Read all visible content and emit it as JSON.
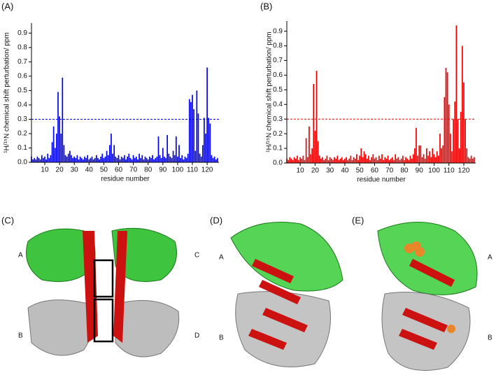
{
  "chart_data": [
    {
      "type": "bar",
      "panel_label": "(A)",
      "xlabel": "residue number",
      "ylabel": "¹H/¹⁵N chemical shift perturbation/ ppm",
      "color": "#0000ee",
      "threshold": 0.3,
      "threshold_color": "#0000ee",
      "xlim": [
        1,
        128
      ],
      "ylim": [
        0,
        0.97
      ],
      "xticks": [
        10,
        20,
        30,
        40,
        50,
        60,
        70,
        80,
        90,
        100,
        110,
        120
      ],
      "yticks": [
        {
          "value": 0,
          "label": "0.0"
        },
        0.1,
        0.2,
        0.3,
        0.4,
        0.5,
        0.6,
        0.7,
        0.8,
        0.9
      ],
      "x": [
        1,
        2,
        3,
        4,
        5,
        6,
        7,
        8,
        9,
        10,
        11,
        12,
        13,
        14,
        15,
        16,
        17,
        18,
        19,
        20,
        21,
        22,
        23,
        24,
        25,
        26,
        27,
        28,
        29,
        30,
        31,
        32,
        33,
        34,
        35,
        36,
        37,
        38,
        39,
        40,
        41,
        42,
        43,
        44,
        45,
        46,
        47,
        48,
        49,
        50,
        51,
        52,
        53,
        54,
        55,
        56,
        57,
        58,
        59,
        60,
        61,
        62,
        63,
        64,
        65,
        66,
        67,
        68,
        69,
        70,
        71,
        72,
        73,
        74,
        75,
        76,
        77,
        78,
        79,
        80,
        81,
        82,
        83,
        84,
        85,
        86,
        87,
        88,
        89,
        90,
        91,
        92,
        93,
        94,
        95,
        96,
        97,
        98,
        99,
        100,
        101,
        102,
        103,
        104,
        105,
        106,
        107,
        108,
        109,
        110,
        111,
        112,
        113,
        114,
        115,
        116,
        117,
        118,
        119,
        120,
        121,
        122,
        123,
        124,
        125,
        126,
        127
      ],
      "values": [
        0.04,
        0.02,
        0.03,
        0.02,
        0.04,
        0.03,
        0.02,
        0.05,
        0.03,
        0.04,
        0.02,
        0.06,
        0.03,
        0.05,
        0.14,
        0.25,
        0.1,
        0.2,
        0.49,
        0.32,
        0.2,
        0.59,
        0.12,
        0.05,
        0.04,
        0.06,
        0.08,
        0.05,
        0.03,
        0.04,
        0.03,
        0.05,
        0.02,
        0.04,
        0.03,
        0.02,
        0.04,
        0.03,
        0.05,
        0.02,
        0.03,
        0.04,
        0.02,
        0.03,
        0.05,
        0.03,
        0.02,
        0.04,
        0.06,
        0.03,
        0.04,
        0.08,
        0.05,
        0.12,
        0.2,
        0.06,
        0.12,
        0.04,
        0.03,
        0.05,
        0.02,
        0.04,
        0.03,
        0.05,
        0.02,
        0.04,
        0.06,
        0.03,
        0.02,
        0.05,
        0.03,
        0.04,
        0.02,
        0.06,
        0.03,
        0.05,
        0.02,
        0.04,
        0.03,
        0.02,
        0.04,
        0.03,
        0.05,
        0.02,
        0.03,
        0.04,
        0.18,
        0.05,
        0.03,
        0.1,
        0.04,
        0.03,
        0.19,
        0.06,
        0.04,
        0.03,
        0.08,
        0.05,
        0.18,
        0.04,
        0.12,
        0.03,
        0.05,
        0.02,
        0.04,
        0.03,
        0.06,
        0.44,
        0.42,
        0.47,
        0.37,
        0.08,
        0.5,
        0.34,
        0.06,
        0.04,
        0.12,
        0.31,
        0.2,
        0.66,
        0.31,
        0.27,
        0.05,
        0.03,
        0.04,
        0.02,
        0.03
      ]
    },
    {
      "type": "bar",
      "panel_label": "(B)",
      "xlabel": "residue number",
      "ylabel": "¹H/¹⁵N chemical shift perturbation/ ppm",
      "color": "#ee0000",
      "threshold": 0.3,
      "threshold_color": "#ee0000",
      "xlim": [
        1,
        128
      ],
      "ylim": [
        0,
        0.97
      ],
      "xticks": [
        10,
        20,
        30,
        40,
        50,
        60,
        70,
        80,
        90,
        100,
        110,
        120
      ],
      "yticks": [
        {
          "value": 0,
          "label": "0.0"
        },
        0.1,
        0.2,
        0.3,
        0.4,
        0.5,
        0.6,
        0.7,
        0.8,
        0.9
      ],
      "x": [
        1,
        2,
        3,
        4,
        5,
        6,
        7,
        8,
        9,
        10,
        11,
        12,
        13,
        14,
        15,
        16,
        17,
        18,
        19,
        20,
        21,
        22,
        23,
        24,
        25,
        26,
        27,
        28,
        29,
        30,
        31,
        32,
        33,
        34,
        35,
        36,
        37,
        38,
        39,
        40,
        41,
        42,
        43,
        44,
        45,
        46,
        47,
        48,
        49,
        50,
        51,
        52,
        53,
        54,
        55,
        56,
        57,
        58,
        59,
        60,
        61,
        62,
        63,
        64,
        65,
        66,
        67,
        68,
        69,
        70,
        71,
        72,
        73,
        74,
        75,
        76,
        77,
        78,
        79,
        80,
        81,
        82,
        83,
        84,
        85,
        86,
        87,
        88,
        89,
        90,
        91,
        92,
        93,
        94,
        95,
        96,
        97,
        98,
        99,
        100,
        101,
        102,
        103,
        104,
        105,
        106,
        107,
        108,
        109,
        110,
        111,
        112,
        113,
        114,
        115,
        116,
        117,
        118,
        119,
        120,
        121,
        122,
        123,
        124,
        125,
        126,
        127
      ],
      "values": [
        0.03,
        0.02,
        0.04,
        0.03,
        0.02,
        0.04,
        0.03,
        0.05,
        0.02,
        0.04,
        0.03,
        0.05,
        0.02,
        0.17,
        0.04,
        0.25,
        0.06,
        0.1,
        0.54,
        0.22,
        0.63,
        0.15,
        0.05,
        0.03,
        0.04,
        0.02,
        0.03,
        0.05,
        0.02,
        0.04,
        0.03,
        0.02,
        0.04,
        0.03,
        0.05,
        0.02,
        0.03,
        0.04,
        0.02,
        0.03,
        0.04,
        0.02,
        0.03,
        0.05,
        0.02,
        0.04,
        0.03,
        0.06,
        0.02,
        0.05,
        0.1,
        0.04,
        0.08,
        0.06,
        0.03,
        0.05,
        0.02,
        0.04,
        0.06,
        0.03,
        0.04,
        0.02,
        0.05,
        0.03,
        0.06,
        0.02,
        0.04,
        0.03,
        0.05,
        0.02,
        0.03,
        0.04,
        0.02,
        0.06,
        0.03,
        0.04,
        0.02,
        0.03,
        0.05,
        0.02,
        0.04,
        0.03,
        0.02,
        0.05,
        0.03,
        0.06,
        0.1,
        0.24,
        0.05,
        0.12,
        0.12,
        0.04,
        0.06,
        0.03,
        0.1,
        0.05,
        0.08,
        0.04,
        0.1,
        0.06,
        0.04,
        0.08,
        0.05,
        0.2,
        0.1,
        0.12,
        0.45,
        0.65,
        0.62,
        0.4,
        0.2,
        0.08,
        0.3,
        0.42,
        0.94,
        0.3,
        0.1,
        0.35,
        0.8,
        0.55,
        0.3,
        0.1,
        0.04,
        0.03,
        0.05,
        0.03,
        0.04
      ]
    }
  ],
  "structures": {
    "panel_c": "(C)",
    "panel_d": "(D)",
    "panel_e": "(E)",
    "c_labels": [
      "A",
      "C",
      "B",
      "D"
    ],
    "d_labels": [
      "A",
      "B"
    ],
    "e_labels": [
      "A",
      "B"
    ]
  }
}
